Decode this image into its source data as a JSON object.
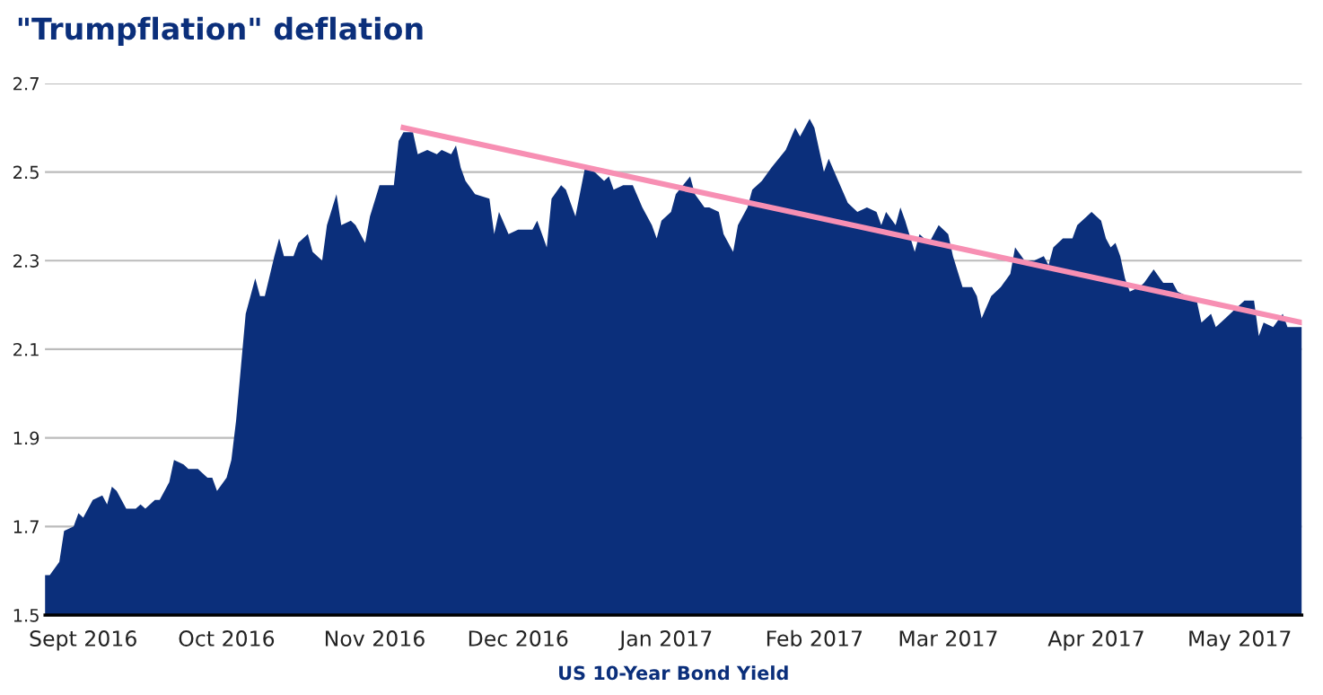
{
  "chart_data": {
    "type": "area",
    "title": "\"Trumpflation\" deflation",
    "xlabel": "US 10-Year Bond Yield",
    "x": [
      "2016-08-24",
      "2016-08-25",
      "2016-08-27",
      "2016-08-28",
      "2016-08-30",
      "2016-08-31",
      "2016-09-01",
      "2016-09-03",
      "2016-09-05",
      "2016-09-06",
      "2016-09-07",
      "2016-09-08",
      "2016-09-10",
      "2016-09-12",
      "2016-09-13",
      "2016-09-14",
      "2016-09-16",
      "2016-09-17",
      "2016-09-19",
      "2016-09-20",
      "2016-09-22",
      "2016-09-23",
      "2016-09-25",
      "2016-09-27",
      "2016-09-28",
      "2016-09-29",
      "2016-10-01",
      "2016-10-02",
      "2016-10-03",
      "2016-10-04",
      "2016-10-05",
      "2016-10-07",
      "2016-10-08",
      "2016-10-09",
      "2016-10-11",
      "2016-10-12",
      "2016-10-13",
      "2016-10-15",
      "2016-10-16",
      "2016-10-18",
      "2016-10-19",
      "2016-10-21",
      "2016-10-22",
      "2016-10-24",
      "2016-10-25",
      "2016-10-27",
      "2016-10-28",
      "2016-10-30",
      "2016-10-31",
      "2016-11-02",
      "2016-11-03",
      "2016-11-05",
      "2016-11-06",
      "2016-11-07",
      "2016-11-09",
      "2016-11-10",
      "2016-11-12",
      "2016-11-14",
      "2016-11-15",
      "2016-11-17",
      "2016-11-18",
      "2016-11-19",
      "2016-11-20",
      "2016-11-22",
      "2016-11-25",
      "2016-11-26",
      "2016-11-27",
      "2016-11-29",
      "2016-12-01",
      "2016-12-04",
      "2016-12-05",
      "2016-12-07",
      "2016-12-08",
      "2016-12-10",
      "2016-12-11",
      "2016-12-13",
      "2016-12-15",
      "2016-12-17",
      "2016-12-19",
      "2016-12-20",
      "2016-12-21",
      "2016-12-23",
      "2016-12-25",
      "2016-12-27",
      "2016-12-29",
      "2016-12-30",
      "2016-12-31",
      "2017-01-02",
      "2017-01-03",
      "2017-01-06",
      "2017-01-07",
      "2017-01-09",
      "2017-01-10",
      "2017-01-12",
      "2017-01-13",
      "2017-01-15",
      "2017-01-16",
      "2017-01-18",
      "2017-01-19",
      "2017-01-21",
      "2017-01-23",
      "2017-01-26",
      "2017-01-28",
      "2017-01-29",
      "2017-01-31",
      "2017-02-01",
      "2017-02-03",
      "2017-02-04",
      "2017-02-06",
      "2017-02-08",
      "2017-02-10",
      "2017-02-12",
      "2017-02-14",
      "2017-02-15",
      "2017-02-16",
      "2017-02-18",
      "2017-02-19",
      "2017-02-20",
      "2017-02-22",
      "2017-02-23",
      "2017-02-25",
      "2017-02-27",
      "2017-03-01",
      "2017-03-02",
      "2017-03-04",
      "2017-03-06",
      "2017-03-07",
      "2017-03-08",
      "2017-03-10",
      "2017-03-12",
      "2017-03-14",
      "2017-03-15",
      "2017-03-17",
      "2017-03-19",
      "2017-03-21",
      "2017-03-22",
      "2017-03-23",
      "2017-03-25",
      "2017-03-27",
      "2017-03-28",
      "2017-03-30",
      "2017-03-31",
      "2017-04-02",
      "2017-04-03",
      "2017-04-04",
      "2017-04-05",
      "2017-04-06",
      "2017-04-07",
      "2017-04-08",
      "2017-04-10",
      "2017-04-11",
      "2017-04-13",
      "2017-04-15",
      "2017-04-17",
      "2017-04-18",
      "2017-04-20",
      "2017-04-22",
      "2017-04-23",
      "2017-04-25",
      "2017-04-26",
      "2017-04-28",
      "2017-04-30",
      "2017-05-02",
      "2017-05-04",
      "2017-05-05",
      "2017-05-06",
      "2017-05-08",
      "2017-05-10",
      "2017-05-11",
      "2017-05-13",
      "2017-05-14"
    ],
    "series": [
      {
        "color": "#0b2f7b",
        "values": [
          1.59,
          1.59,
          1.62,
          1.69,
          1.7,
          1.73,
          1.72,
          1.76,
          1.77,
          1.75,
          1.79,
          1.78,
          1.74,
          1.74,
          1.75,
          1.74,
          1.76,
          1.76,
          1.8,
          1.85,
          1.84,
          1.83,
          1.83,
          1.81,
          1.81,
          1.78,
          1.81,
          1.85,
          1.94,
          2.06,
          2.18,
          2.26,
          2.22,
          2.22,
          2.31,
          2.35,
          2.31,
          2.31,
          2.34,
          2.36,
          2.32,
          2.3,
          2.38,
          2.45,
          2.38,
          2.39,
          2.38,
          2.34,
          2.4,
          2.47,
          2.47,
          2.47,
          2.57,
          2.59,
          2.59,
          2.54,
          2.55,
          2.54,
          2.55,
          2.54,
          2.56,
          2.51,
          2.48,
          2.45,
          2.44,
          2.36,
          2.41,
          2.36,
          2.37,
          2.37,
          2.39,
          2.33,
          2.44,
          2.47,
          2.46,
          2.4,
          2.51,
          2.5,
          2.48,
          2.49,
          2.46,
          2.47,
          2.47,
          2.42,
          2.38,
          2.35,
          2.39,
          2.41,
          2.45,
          2.49,
          2.45,
          2.42,
          2.42,
          2.41,
          2.36,
          2.32,
          2.38,
          2.42,
          2.46,
          2.48,
          2.51,
          2.55,
          2.6,
          2.58,
          2.62,
          2.6,
          2.5,
          2.53,
          2.48,
          2.43,
          2.41,
          2.42,
          2.41,
          2.38,
          2.41,
          2.38,
          2.42,
          2.39,
          2.32,
          2.36,
          2.34,
          2.38,
          2.36,
          2.31,
          2.24,
          2.24,
          2.22,
          2.17,
          2.22,
          2.24,
          2.27,
          2.33,
          2.3,
          2.3,
          2.31,
          2.29,
          2.33,
          2.35,
          2.35,
          2.38,
          2.4,
          2.41,
          2.39,
          2.35,
          2.33,
          2.34,
          2.31,
          2.26,
          2.23,
          2.24,
          2.25,
          2.28,
          2.25,
          2.25,
          2.23,
          2.22,
          2.21,
          2.16,
          2.18,
          2.15,
          2.17,
          2.19,
          2.21,
          2.21,
          2.13,
          2.16,
          2.15,
          2.18,
          2.15,
          2.15,
          2.15
        ]
      },
      {
        "type": "line",
        "color": "#f78fb3",
        "x": [
          "2016-11-07",
          "2017-05-14"
        ],
        "values": [
          2.6,
          2.16
        ]
      }
    ],
    "xlim": [
      "2016-08-24",
      "2017-05-14"
    ],
    "xticks": [
      {
        "value": "2016-09-01",
        "label": "Sept 2016"
      },
      {
        "value": "2016-10-01",
        "label": "Oct 2016"
      },
      {
        "value": "2016-11-01",
        "label": "Nov 2016"
      },
      {
        "value": "2016-12-01",
        "label": "Dec 2016"
      },
      {
        "value": "2017-01-01",
        "label": "Jan 2017"
      },
      {
        "value": "2017-02-01",
        "label": "Feb 2017"
      },
      {
        "value": "2017-03-01",
        "label": "Mar 2017"
      },
      {
        "value": "2017-04-01",
        "label": "Apr 2017"
      },
      {
        "value": "2017-05-01",
        "label": "May 2017"
      }
    ],
    "ylim": [
      1.5,
      2.7
    ],
    "yticks": [
      1.5,
      1.7,
      1.9,
      2.1,
      2.3,
      2.5,
      2.7
    ],
    "grid": "y"
  }
}
